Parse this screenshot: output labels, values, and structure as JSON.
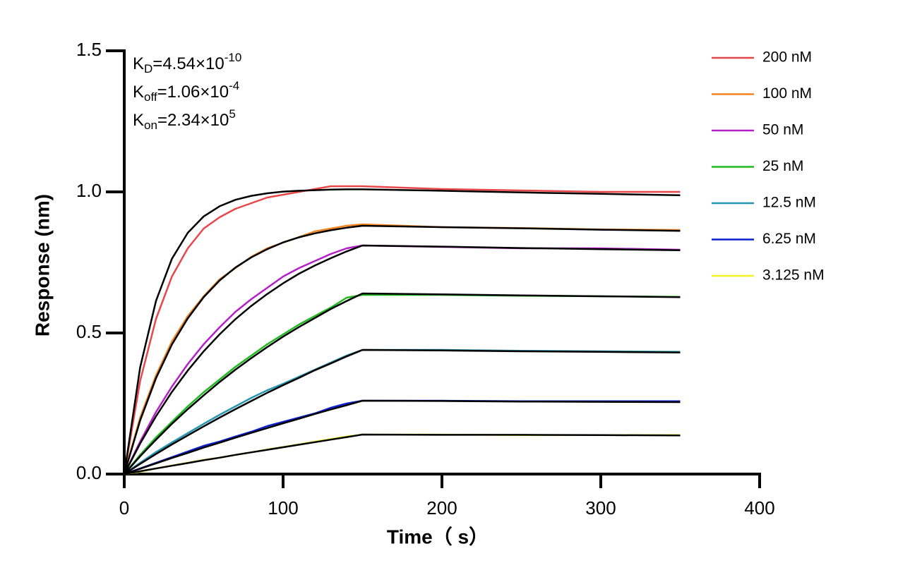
{
  "chart_data": {
    "type": "line",
    "xlabel": "Time（ s）",
    "ylabel": "Response (nm)",
    "annotations": [
      {
        "main": "K",
        "sub": "D",
        "text": "=4.54×10",
        "sup": "-10"
      },
      {
        "main": "K",
        "sub": "off",
        "text": "=1.06×10",
        "sup": "-4"
      },
      {
        "main": "K",
        "sub": "on",
        "text": "=2.34×10",
        "sup": "5"
      }
    ],
    "x": [
      0,
      10,
      20,
      30,
      40,
      50,
      60,
      70,
      80,
      90,
      100,
      110,
      120,
      130,
      140,
      150,
      200,
      250,
      300,
      350
    ],
    "xlim": [
      0,
      400
    ],
    "xticks": [
      0,
      100,
      200,
      300,
      400
    ],
    "ylim": [
      0,
      1.5
    ],
    "yticks": [
      {
        "value": 0,
        "label": "0.0"
      },
      {
        "value": 0.5,
        "label": "0.5"
      },
      {
        "value": 1,
        "label": "1.0"
      },
      {
        "value": 1.5,
        "label": "1.5"
      }
    ],
    "series": [
      {
        "name": "200 nM",
        "color": "#e8474a",
        "values": [
          0,
          0.33,
          0.55,
          0.7,
          0.8,
          0.87,
          0.91,
          0.94,
          0.96,
          0.98,
          0.99,
          1.0,
          1.01,
          1.02,
          1.02,
          1.02,
          1.01,
          1.005,
          1.0,
          1.0
        ]
      },
      {
        "name": "100 nM",
        "color": "#f0841f",
        "values": [
          0,
          0.2,
          0.35,
          0.47,
          0.56,
          0.63,
          0.69,
          0.73,
          0.77,
          0.8,
          0.82,
          0.84,
          0.86,
          0.87,
          0.88,
          0.885,
          0.875,
          0.872,
          0.867,
          0.865
        ]
      },
      {
        "name": "50 nM",
        "color": "#b51fc9",
        "values": [
          0,
          0.115,
          0.22,
          0.31,
          0.39,
          0.46,
          0.52,
          0.575,
          0.62,
          0.66,
          0.7,
          0.73,
          0.755,
          0.78,
          0.8,
          0.81,
          0.805,
          0.8,
          0.8,
          0.795
        ]
      },
      {
        "name": "25 nM",
        "color": "#1fba1f",
        "values": [
          0,
          0.068,
          0.13,
          0.185,
          0.24,
          0.29,
          0.335,
          0.38,
          0.42,
          0.46,
          0.495,
          0.53,
          0.56,
          0.59,
          0.625,
          0.635,
          0.635,
          0.632,
          0.63,
          0.628
        ]
      },
      {
        "name": "12.5 nM",
        "color": "#2596b0",
        "values": [
          0,
          0.04,
          0.078,
          0.112,
          0.145,
          0.178,
          0.21,
          0.24,
          0.27,
          0.297,
          0.32,
          0.345,
          0.37,
          0.395,
          0.42,
          0.44,
          0.44,
          0.437,
          0.435,
          0.433
        ]
      },
      {
        "name": "6.25 nM",
        "color": "#0a1fd1",
        "values": [
          0,
          0.02,
          0.04,
          0.06,
          0.08,
          0.1,
          0.115,
          0.133,
          0.15,
          0.17,
          0.185,
          0.2,
          0.215,
          0.235,
          0.25,
          0.26,
          0.26,
          0.258,
          0.258,
          0.258
        ]
      },
      {
        "name": "3.125 nM",
        "color": "#f3f01f",
        "values": [
          0,
          0.008,
          0.02,
          0.03,
          0.04,
          0.05,
          0.058,
          0.068,
          0.077,
          0.087,
          0.096,
          0.105,
          0.115,
          0.124,
          0.133,
          0.14,
          0.14,
          0.138,
          0.138,
          0.138
        ]
      },
      {
        "color": "#000000",
        "values": [
          0,
          0.378,
          0.614,
          0.763,
          0.855,
          0.913,
          0.949,
          0.972,
          0.986,
          0.995,
          1.001,
          1.004,
          1.006,
          1.008,
          1.009,
          1.009,
          1.004,
          0.998,
          0.993,
          0.988
        ]
      },
      {
        "color": "#000000",
        "values": [
          0,
          0.19,
          0.34,
          0.459,
          0.552,
          0.627,
          0.686,
          0.732,
          0.768,
          0.797,
          0.821,
          0.839,
          0.853,
          0.864,
          0.873,
          0.88,
          0.875,
          0.871,
          0.866,
          0.862
        ]
      },
      {
        "color": "#000000",
        "values": [
          0,
          0.108,
          0.205,
          0.291,
          0.367,
          0.435,
          0.495,
          0.549,
          0.596,
          0.638,
          0.676,
          0.71,
          0.739,
          0.765,
          0.789,
          0.81,
          0.806,
          0.801,
          0.797,
          0.793
        ]
      },
      {
        "color": "#000000",
        "values": [
          0,
          0.063,
          0.122,
          0.178,
          0.23,
          0.279,
          0.326,
          0.37,
          0.411,
          0.45,
          0.487,
          0.521,
          0.553,
          0.585,
          0.613,
          0.64,
          0.637,
          0.633,
          0.63,
          0.627
        ]
      },
      {
        "color": "#000000",
        "values": [
          0,
          0.036,
          0.071,
          0.105,
          0.137,
          0.169,
          0.2,
          0.23,
          0.259,
          0.288,
          0.315,
          0.341,
          0.368,
          0.392,
          0.417,
          0.44,
          0.438,
          0.435,
          0.433,
          0.431
        ]
      },
      {
        "color": "#000000",
        "values": [
          0,
          0.019,
          0.038,
          0.057,
          0.075,
          0.094,
          0.111,
          0.129,
          0.146,
          0.163,
          0.18,
          0.196,
          0.213,
          0.229,
          0.244,
          0.26,
          0.259,
          0.257,
          0.256,
          0.255
        ]
      },
      {
        "color": "#000000",
        "values": [
          0,
          0.0099,
          0.0198,
          0.0295,
          0.039,
          0.049,
          0.058,
          0.068,
          0.077,
          0.086,
          0.095,
          0.104,
          0.113,
          0.122,
          0.131,
          0.14,
          0.139,
          0.139,
          0.138,
          0.137
        ]
      }
    ]
  }
}
